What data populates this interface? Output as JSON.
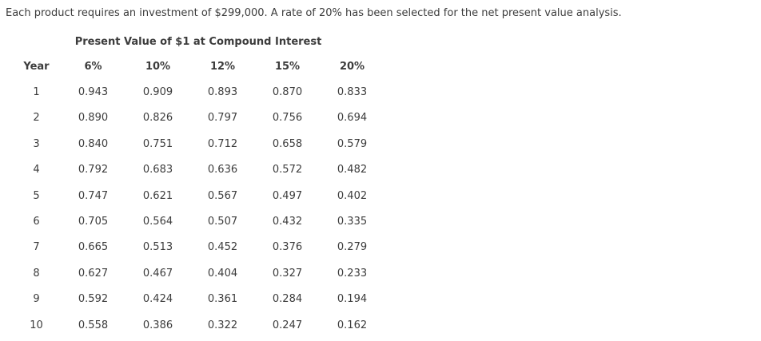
{
  "intro": "Each product requires an investment of $299,000. A rate of 20% has been selected for the net present value analysis.",
  "table": {
    "title": "Present Value of $1 at Compound Interest",
    "columns": [
      "Year",
      "6%",
      "10%",
      "12%",
      "15%",
      "20%"
    ],
    "rows": [
      [
        "1",
        "0.943",
        "0.909",
        "0.893",
        "0.870",
        "0.833"
      ],
      [
        "2",
        "0.890",
        "0.826",
        "0.797",
        "0.756",
        "0.694"
      ],
      [
        "3",
        "0.840",
        "0.751",
        "0.712",
        "0.658",
        "0.579"
      ],
      [
        "4",
        "0.792",
        "0.683",
        "0.636",
        "0.572",
        "0.482"
      ],
      [
        "5",
        "0.747",
        "0.621",
        "0.567",
        "0.497",
        "0.402"
      ],
      [
        "6",
        "0.705",
        "0.564",
        "0.507",
        "0.432",
        "0.335"
      ],
      [
        "7",
        "0.665",
        "0.513",
        "0.452",
        "0.376",
        "0.279"
      ],
      [
        "8",
        "0.627",
        "0.467",
        "0.404",
        "0.327",
        "0.233"
      ],
      [
        "9",
        "0.592",
        "0.424",
        "0.361",
        "0.284",
        "0.194"
      ],
      [
        "10",
        "0.558",
        "0.386",
        "0.322",
        "0.247",
        "0.162"
      ]
    ]
  },
  "colors": {
    "text": "#3c3c3c",
    "background": "#ffffff"
  }
}
